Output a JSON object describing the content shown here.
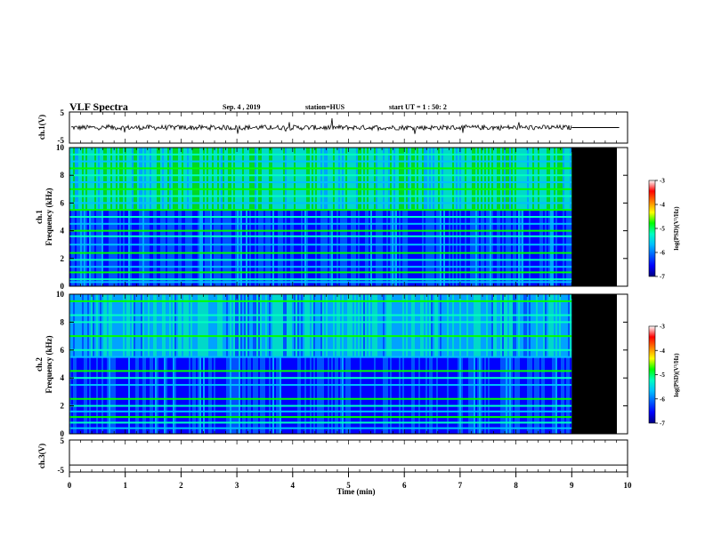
{
  "header": {
    "title": "VLF Spectra",
    "date": "Sep. 4  , 2019",
    "station": "station=HUS",
    "start": "start  UT =   1 : 50: 2"
  },
  "colors": {
    "cmap": [
      "#000080",
      "#0000ff",
      "#0060ff",
      "#00c0ff",
      "#00ffc0",
      "#00ff00",
      "#ffff00",
      "#ff8000",
      "#ff0000",
      "#ffffff"
    ],
    "nodata": "#000000",
    "trace": "#000000"
  },
  "chart_data": [
    {
      "type": "line",
      "panel": "ch1-voltage",
      "ylabel": "ch.1(V)",
      "ylim": [
        -5,
        5
      ],
      "yticks": [
        "5",
        "-5"
      ],
      "xlim": [
        0,
        10
      ],
      "series": [
        {
          "x": [
            0,
            9.0,
            9.0,
            9.85
          ],
          "values": [
            0,
            0,
            0,
            0
          ]
        }
      ]
    },
    {
      "type": "heatmap",
      "panel": "ch1-spectrogram",
      "ylabel": "ch.1\nFrequency (kHz)",
      "ylim": [
        0,
        10
      ],
      "yticks": [
        "0",
        "2",
        "4",
        "6",
        "8",
        "10"
      ],
      "xlim": [
        0,
        10
      ],
      "data_end_min": 9.0,
      "colorbar": {
        "label": "log(PSD)(V²/Hz)",
        "range": [
          -7,
          -3
        ],
        "ticks": [
          "-3",
          "-4",
          "-5",
          "-6",
          "-7"
        ]
      },
      "bands_khz": [
        0.3,
        0.5,
        1.0,
        1.4,
        1.9,
        2.4,
        3.0,
        3.6,
        4.0,
        4.5,
        5.0,
        5.5,
        6.0,
        6.5,
        7.0,
        7.5,
        8.0,
        8.5,
        9.0,
        9.5
      ]
    },
    {
      "type": "heatmap",
      "panel": "ch2-spectrogram",
      "ylabel": "ch.2\nFrequency (kHz)",
      "ylim": [
        0,
        10
      ],
      "yticks": [
        "0",
        "2",
        "4",
        "6",
        "8",
        "10"
      ],
      "xlim": [
        0,
        10
      ],
      "data_end_min": 9.0,
      "colorbar": {
        "label": "log(PSD)(V²/Hz)",
        "range": [
          -7,
          -3
        ],
        "ticks": [
          "-3",
          "-4",
          "-5",
          "-6",
          "-7"
        ]
      },
      "bands_khz": [
        0.4,
        0.8,
        1.2,
        1.6,
        2.0,
        2.5,
        3.5,
        4.0,
        4.5,
        5.5,
        6.0,
        7.0,
        8.0,
        8.5,
        9.5
      ]
    },
    {
      "type": "line",
      "panel": "ch3-voltage",
      "ylabel": "ch.3(V)",
      "ylim": [
        -5,
        5
      ],
      "yticks": [
        "5",
        "-5"
      ],
      "xlim": [
        0,
        10
      ],
      "xlabel": "Time  (min)",
      "xticks": [
        "0",
        "1",
        "2",
        "3",
        "4",
        "5",
        "6",
        "7",
        "8",
        "9",
        "10"
      ],
      "series": [
        {
          "x": [
            0,
            10
          ],
          "values": [
            -2.8,
            -2.8
          ]
        }
      ]
    }
  ]
}
